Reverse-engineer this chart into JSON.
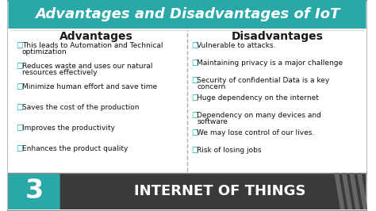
{
  "title": "Advantages and Disadvantages of IoT",
  "title_bg": "#2aa8a8",
  "title_color": "#ffffff",
  "col1_header": "Advantages",
  "col2_header": "Disadvantages",
  "header_color": "#1a1a1a",
  "advantages": [
    "This leads to Automation and Technical\noptimization",
    "Reduces waste and uses our natural\nresources effectively",
    "Minimize human effort and save time",
    "Saves the cost of the production",
    "Improves the productivity",
    "Enhances the product quality"
  ],
  "disadvantages": [
    "Vulnerable to attacks.",
    "Maintaining privacy is a major challenge",
    "Security of confidential Data is a key\nconcern",
    "Huge dependency on the internet",
    "Dependency on many devices and\nsoftware",
    "We may lose control of our lives.",
    "Risk of losing jobs"
  ],
  "item_color": "#00aaaa",
  "footer_bg": "#3a3a3a",
  "footer_text": "INTERNET OF THINGS",
  "footer_number": "3",
  "footer_num_bg": "#2aa8a8",
  "footer_text_color": "#ffffff",
  "bg_color": "#ffffff",
  "border_color": "#aaaaaa"
}
